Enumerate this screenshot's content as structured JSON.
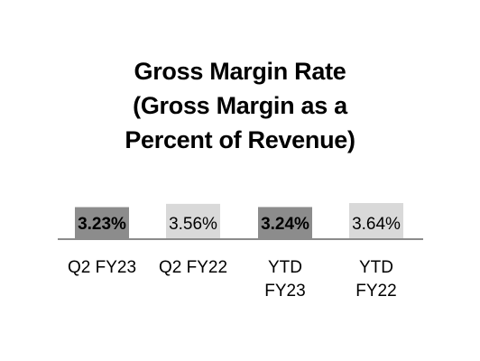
{
  "chart_data": {
    "type": "bar",
    "title_lines": [
      "Gross Margin Rate",
      "(Gross Margin as a",
      "Percent of Revenue)"
    ],
    "categories": [
      [
        "Q2 FY23"
      ],
      [
        "Q2 FY22"
      ],
      [
        "YTD",
        "FY23"
      ],
      [
        "YTD",
        "FY22"
      ]
    ],
    "values": [
      3.23,
      3.56,
      3.24,
      3.64
    ],
    "data_labels": [
      "3.23%",
      "3.56%",
      "3.24%",
      "3.64%"
    ],
    "label_bold": [
      true,
      false,
      true,
      false
    ],
    "colors": [
      "#8c8c8c",
      "#d9d9d9",
      "#8c8c8c",
      "#d9d9d9"
    ],
    "axis_color": "#8c8c8c",
    "grid": false,
    "legend": "none"
  }
}
